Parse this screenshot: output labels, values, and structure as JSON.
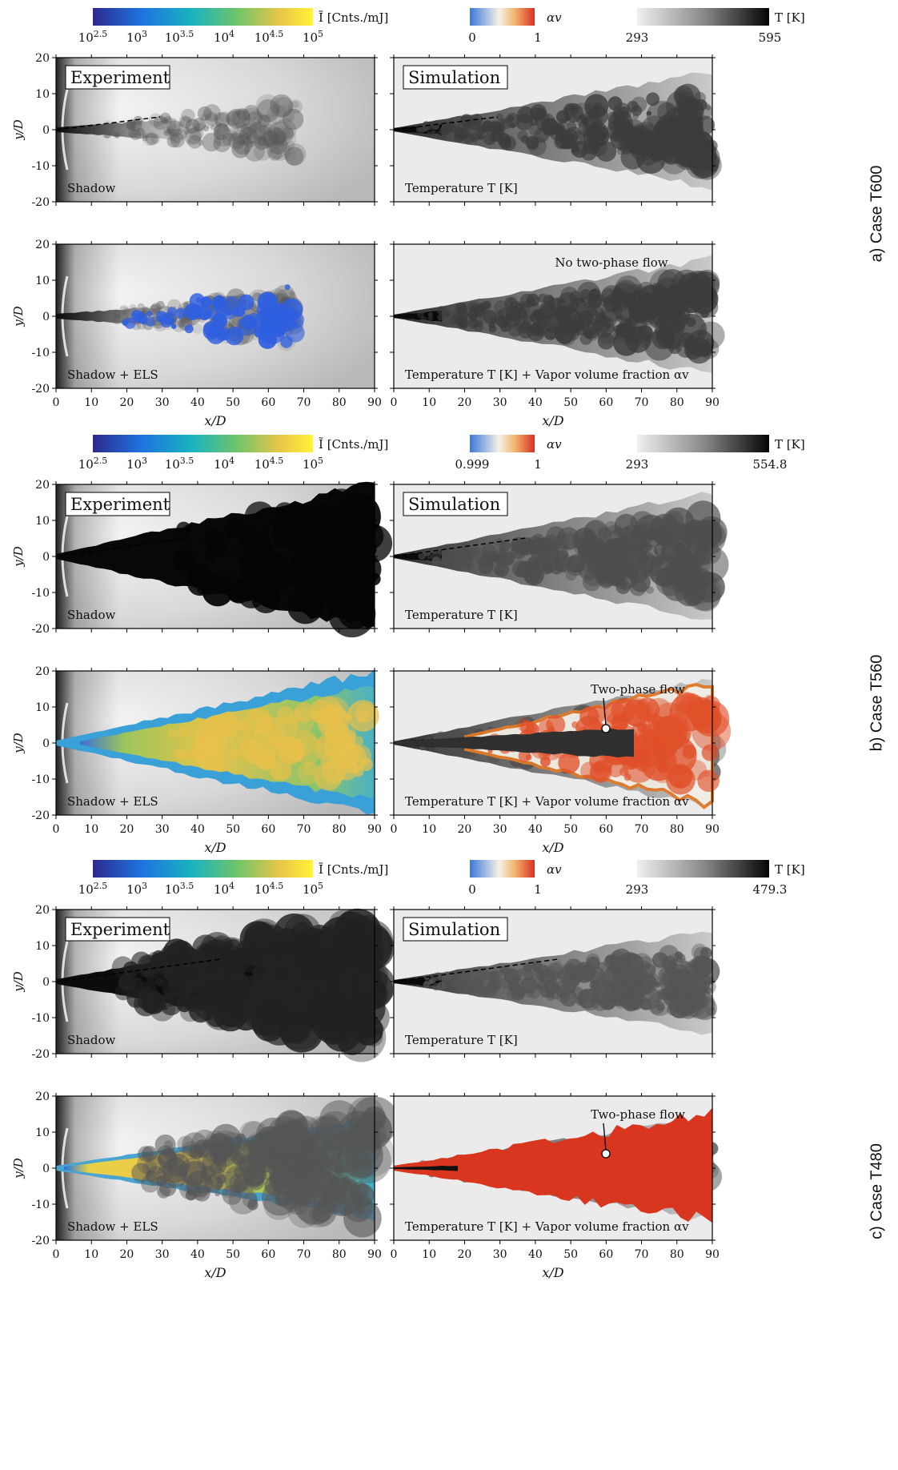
{
  "figure": {
    "x_ticks": [
      "0",
      "10",
      "20",
      "30",
      "40",
      "50",
      "60",
      "70",
      "80",
      "90"
    ],
    "y_ticks": [
      "20",
      "10",
      "0",
      "-10",
      "-20"
    ],
    "x_label": "x/D",
    "y_label": "y/D",
    "colorbars": {
      "intensity_label": "Ĩ [Cnts./mJ]",
      "intensity_ticks": [
        "10^2.5",
        "10^3",
        "10^3.5",
        "10^4",
        "10^4.5",
        "10^5"
      ],
      "alpha_label": "αv",
      "temp_label": "T [K]"
    },
    "panel_titles": {
      "experiment": "Experiment",
      "simulation": "Simulation"
    },
    "panel_labels": {
      "shadow": "Shadow",
      "shadow_els": "Shadow + ELS",
      "temperature": "Temperature T [K]",
      "temperature_vapor": "Temperature T [K] + Vapor volume fraction αv"
    },
    "cases": [
      {
        "label": "a) Case T600",
        "alpha_min": "0",
        "alpha_max": "1",
        "temp_min": "293",
        "temp_max": "595",
        "annotation": "No two-phase flow",
        "state": "none"
      },
      {
        "label": "b) Case T560",
        "alpha_min": "0.999",
        "alpha_max": "1",
        "temp_min": "293",
        "temp_max": "554.8",
        "annotation": "Two-phase flow",
        "state": "mixed"
      },
      {
        "label": "c) Case T480",
        "alpha_min": "0",
        "alpha_max": "1",
        "temp_min": "293",
        "temp_max": "479.3",
        "annotation": "Two-phase flow",
        "state": "full"
      }
    ]
  },
  "colors": {
    "intensity_gradient": [
      "#2c2a8f",
      "#1f73e0",
      "#19b3c0",
      "#6cc46c",
      "#e8c648",
      "#fff236"
    ],
    "alpha_gradient": [
      "#3c78d8",
      "#f2f2ef",
      "#f2b36a",
      "#d83020"
    ],
    "temp_gradient": [
      "#f0f0f0",
      "#9a9a9a",
      "#050505"
    ],
    "sim_background": "#ebebeb",
    "two_phase_red": "#d9361f"
  }
}
